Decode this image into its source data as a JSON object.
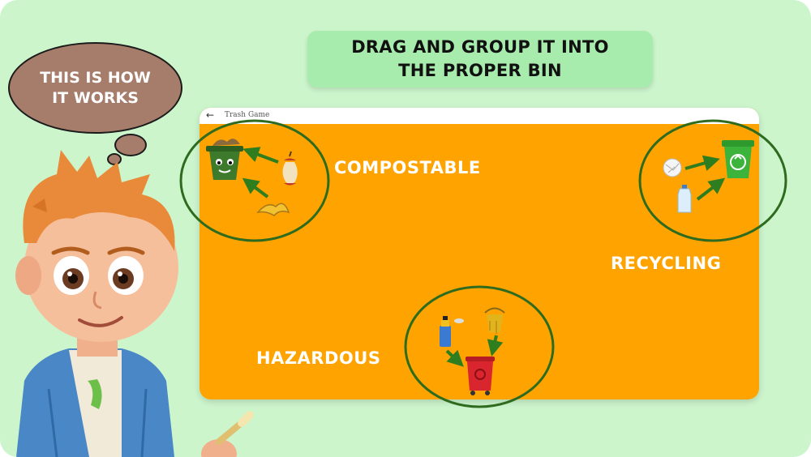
{
  "banner": {
    "line1": "DRAG AND GROUP IT INTO",
    "line2": "THE PROPER BIN"
  },
  "bubble": {
    "line1": "THIS IS HOW",
    "line2": "IT WORKS"
  },
  "app": {
    "back_icon": "←",
    "title": "Trash Game"
  },
  "categories": {
    "compost": "COMPOSTABLE",
    "recycle": "RECYCLING",
    "hazard": "HAZARDOUS"
  },
  "icons": [
    "compost-bin-icon",
    "apple-core-icon",
    "banana-peel-icon",
    "paper-ball-icon",
    "plastic-bottle-icon",
    "recycle-bin-icon",
    "spray-can-icon",
    "paint-bucket-icon",
    "hazardous-bin-icon",
    "arrow-icon"
  ],
  "colors": {
    "background": "#ccf5cc",
    "game_area": "#ffa300",
    "circle": "#2e6b1f",
    "arrow": "#2e7d1f"
  }
}
